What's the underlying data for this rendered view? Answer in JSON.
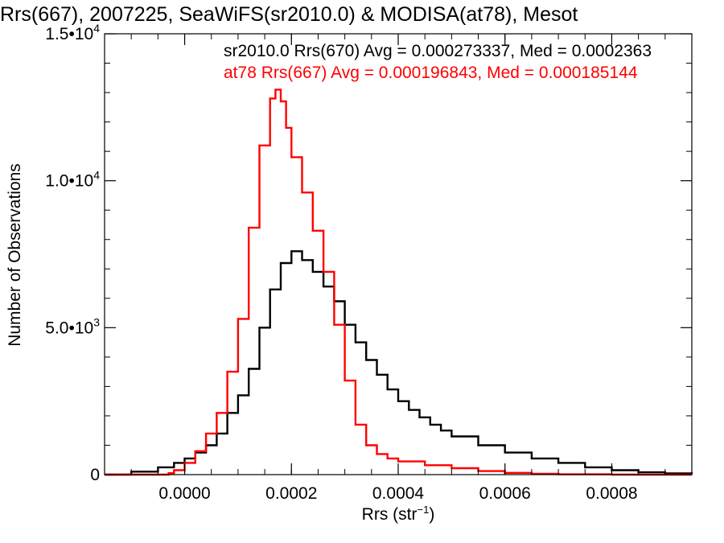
{
  "chart_data": {
    "type": "line",
    "title": "Rrs(667), 2007225, SeaWiFS(sr2010.0) & MODISA(at78), Mesot",
    "xlabel": "Rrs (str",
    "xlabel_sup": "−1",
    "xlabel_end": ")",
    "ylabel": "Number of Observations",
    "xlim": [
      -0.00015,
      0.00095
    ],
    "ylim": [
      0,
      15000
    ],
    "x_ticks": [
      {
        "value": 0.0,
        "label": "0.0000"
      },
      {
        "value": 0.0002,
        "label": "0.0002"
      },
      {
        "value": 0.0004,
        "label": "0.0004"
      },
      {
        "value": 0.0006,
        "label": "0.0006"
      },
      {
        "value": 0.0008,
        "label": "0.0008"
      }
    ],
    "y_ticks": [
      {
        "value": 0,
        "label": "0",
        "sup": ""
      },
      {
        "value": 5000,
        "label": "5.0•10",
        "sup": "3"
      },
      {
        "value": 10000,
        "label": "1.0•10",
        "sup": "4"
      },
      {
        "value": 15000,
        "label": "1.5•10",
        "sup": "4"
      }
    ],
    "annotations": [
      {
        "text": "sr2010.0 Rrs(670) Avg = 0.000273337, Med = 0.0002363",
        "color": "#000000"
      },
      {
        "text": "at78 Rrs(667) Avg = 0.000196843, Med = 0.000185144",
        "color": "#ff0000"
      }
    ],
    "series": [
      {
        "color": "#000000",
        "x": [
          -0.00015,
          -0.0001,
          -5e-05,
          -2e-05,
          0.0,
          2e-05,
          4e-05,
          6e-05,
          8e-05,
          0.0001,
          0.00012,
          0.00014,
          0.00016,
          0.00018,
          0.0002,
          0.00022,
          0.00024,
          0.00026,
          0.00028,
          0.0003,
          0.00032,
          0.00034,
          0.00036,
          0.00038,
          0.0004,
          0.00042,
          0.00044,
          0.00046,
          0.00048,
          0.0005,
          0.00055,
          0.0006,
          0.00065,
          0.0007,
          0.00075,
          0.0008,
          0.00085,
          0.0009,
          0.00095
        ],
        "y": [
          0,
          100,
          250,
          400,
          550,
          750,
          1000,
          1400,
          2100,
          2700,
          3600,
          5000,
          6300,
          7200,
          7600,
          7300,
          6900,
          6400,
          5900,
          5100,
          4500,
          3900,
          3400,
          2900,
          2500,
          2200,
          1950,
          1700,
          1500,
          1300,
          1000,
          750,
          550,
          400,
          250,
          150,
          80,
          40,
          20
        ]
      },
      {
        "color": "#ff0000",
        "x": [
          -0.00015,
          -0.0001,
          -5e-05,
          -3e-05,
          -2e-05,
          0.0,
          2e-05,
          4e-05,
          6e-05,
          8e-05,
          0.0001,
          0.00012,
          0.00014,
          0.00016,
          0.00017,
          0.00018,
          0.00019,
          0.0002,
          0.00022,
          0.00024,
          0.00026,
          0.00028,
          0.0003,
          0.00032,
          0.00034,
          0.00036,
          0.00038,
          0.0004,
          0.00045,
          0.0005,
          0.00055,
          0.0006,
          0.00065,
          0.0007,
          0.0008,
          0.0009,
          0.00095
        ],
        "y": [
          0,
          0,
          0,
          50,
          150,
          400,
          800,
          1400,
          2100,
          3500,
          5300,
          8400,
          11200,
          12800,
          13100,
          12700,
          11800,
          10800,
          9600,
          8300,
          6900,
          5100,
          3200,
          1700,
          1000,
          700,
          550,
          450,
          320,
          220,
          120,
          60,
          30,
          10,
          0,
          0,
          0
        ]
      }
    ]
  }
}
